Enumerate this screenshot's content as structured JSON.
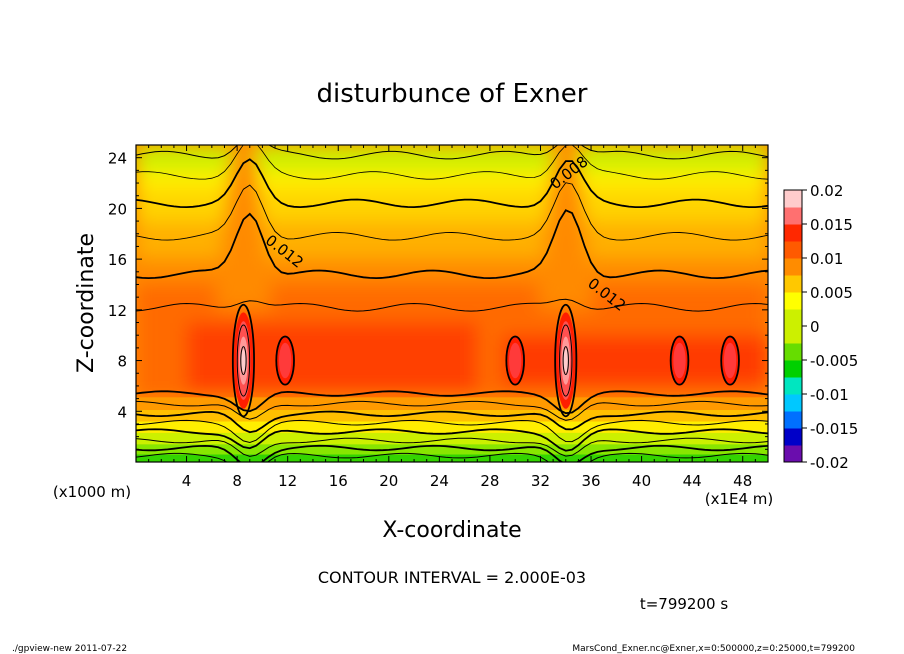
{
  "chart_data": {
    "type": "heatmap",
    "title": "disturbunce of Exner",
    "xlabel": "X-coordinate",
    "ylabel": "Z-coordinate",
    "x_unit": "(x1E4 m)",
    "y_unit": "(x1000 m)",
    "xlim": [
      0,
      50
    ],
    "ylim": [
      0,
      25
    ],
    "x_ticks": [
      4,
      8,
      12,
      16,
      20,
      24,
      28,
      32,
      36,
      40,
      44,
      48
    ],
    "y_ticks": [
      4,
      8,
      12,
      16,
      20,
      24
    ],
    "colorbar": {
      "ticks": [
        "0.02",
        "0.015",
        "0.01",
        "0.005",
        "0",
        "-0.005",
        "-0.01",
        "-0.015",
        "-0.02"
      ],
      "values": [
        0.02,
        0.015,
        0.01,
        0.005,
        0,
        -0.005,
        -0.01,
        -0.015,
        -0.02
      ],
      "range": [
        -0.02,
        0.02
      ]
    },
    "contour_interval": 0.002,
    "contour_labels": [
      {
        "text": "0.008",
        "x": 34.5,
        "y": 22.5
      },
      {
        "text": "0.012",
        "x": 11.5,
        "y": 16.3
      },
      {
        "text": "0.012",
        "x": 37.0,
        "y": 12.9
      }
    ],
    "field_features": [
      {
        "description": "peak",
        "x": 8.5,
        "y": 8,
        "value": 0.019
      },
      {
        "description": "peak",
        "x": 34.0,
        "y": 8,
        "value": 0.019
      },
      {
        "description": "closed contour",
        "x": 11.8,
        "y": 8,
        "value": 0.018
      },
      {
        "description": "closed contour",
        "x": 30.0,
        "y": 8,
        "value": 0.016
      },
      {
        "description": "closed contour",
        "x": 43.0,
        "y": 8,
        "value": 0.016
      },
      {
        "description": "closed contour",
        "x": 47.0,
        "y": 8,
        "value": 0.016
      }
    ]
  },
  "annotations": {
    "contour_interval_text": "CONTOUR INTERVAL = 2.000E-03",
    "time_text": "t=799200  s",
    "footer_left": "./gpview-new   2011-07-22",
    "footer_right": "MarsCond_Exner.nc@Exner,x=0:500000,z=0:25000,t=799200"
  },
  "colors": {
    "scale": [
      "#6a0dad",
      "#0000c8",
      "#0070ff",
      "#00c8ff",
      "#00e6c0",
      "#00d000",
      "#66dd00",
      "#ccf000",
      "#ffff00",
      "#ffc800",
      "#ff8c00",
      "#ff5a00",
      "#ff2800",
      "#ff7070",
      "#ffcccc"
    ]
  }
}
